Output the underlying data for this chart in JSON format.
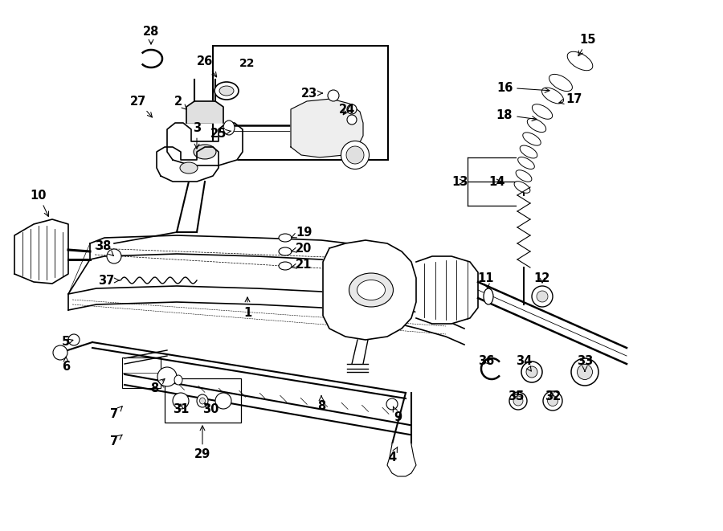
{
  "bg_color": "#ffffff",
  "line_color": "#000000",
  "fig_width": 9.0,
  "fig_height": 6.61,
  "dpi": 100,
  "label_positions": {
    "28": [
      1.88,
      6.25,
      1.88,
      5.98
    ],
    "26": [
      2.55,
      5.9,
      2.55,
      5.68
    ],
    "22": [
      3.1,
      5.82,
      3.1,
      5.82
    ],
    "27": [
      1.72,
      5.32,
      1.85,
      5.18
    ],
    "2": [
      2.22,
      5.28,
      2.28,
      5.1
    ],
    "3": [
      2.42,
      4.95,
      2.42,
      4.72
    ],
    "10": [
      0.52,
      4.15,
      0.72,
      3.98
    ],
    "23": [
      3.88,
      5.42,
      3.72,
      5.28
    ],
    "24": [
      4.28,
      5.18,
      4.12,
      5.08
    ],
    "25": [
      2.75,
      4.95,
      2.92,
      4.82
    ],
    "19": [
      3.75,
      3.72,
      3.6,
      3.62
    ],
    "20": [
      3.75,
      3.52,
      3.58,
      3.42
    ],
    "21": [
      3.75,
      3.32,
      3.6,
      3.22
    ],
    "1": [
      3.12,
      2.75,
      3.12,
      2.92
    ],
    "38": [
      1.32,
      3.55,
      1.45,
      3.42
    ],
    "37": [
      1.35,
      3.15,
      1.52,
      3.08
    ],
    "5": [
      0.88,
      2.32,
      0.98,
      2.22
    ],
    "6": [
      0.88,
      2.05,
      0.92,
      2.18
    ],
    "8a": [
      1.95,
      1.75,
      2.05,
      1.88
    ],
    "31": [
      2.28,
      1.55,
      2.38,
      1.68
    ],
    "30": [
      2.65,
      1.55,
      2.65,
      1.68
    ],
    "7a": [
      1.42,
      1.45,
      1.55,
      1.55
    ],
    "7b": [
      1.42,
      1.12,
      1.55,
      1.22
    ],
    "29": [
      2.55,
      0.98,
      2.55,
      1.08
    ],
    "8b": [
      3.98,
      1.52,
      4.05,
      1.65
    ],
    "9": [
      4.98,
      1.42,
      4.95,
      1.55
    ],
    "4": [
      4.88,
      0.95,
      4.92,
      1.08
    ],
    "15": [
      7.28,
      6.12,
      7.22,
      5.98
    ],
    "16": [
      6.32,
      5.52,
      6.48,
      5.42
    ],
    "17": [
      7.12,
      5.38,
      6.92,
      5.28
    ],
    "18": [
      6.32,
      5.18,
      6.48,
      5.08
    ],
    "13": [
      5.75,
      4.35,
      5.92,
      4.18
    ],
    "14": [
      6.18,
      4.35,
      6.28,
      4.18
    ],
    "11": [
      6.08,
      3.15,
      6.08,
      3.02
    ],
    "12": [
      6.75,
      3.15,
      6.75,
      3.02
    ],
    "36": [
      6.05,
      2.12,
      6.12,
      2.22
    ],
    "34": [
      6.55,
      2.12,
      6.62,
      2.22
    ],
    "33": [
      7.28,
      2.12,
      7.22,
      2.22
    ],
    "35": [
      6.42,
      1.72,
      6.52,
      1.82
    ],
    "32": [
      6.88,
      1.72,
      6.88,
      1.82
    ]
  }
}
